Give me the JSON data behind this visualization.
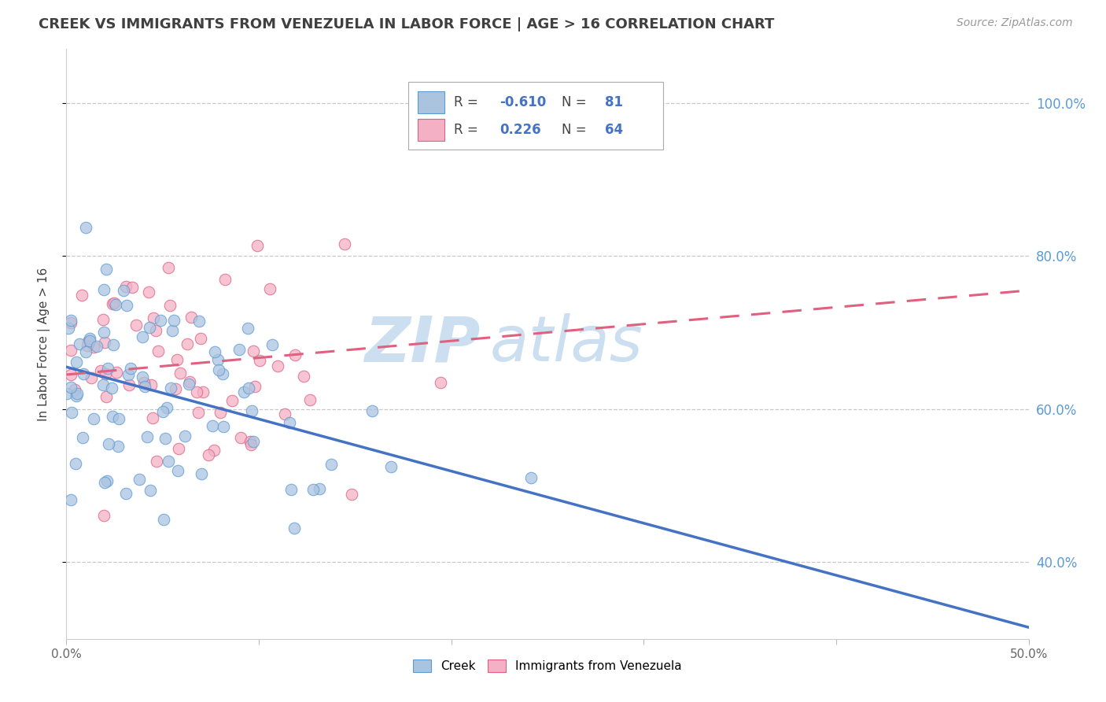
{
  "title": "CREEK VS IMMIGRANTS FROM VENEZUELA IN LABOR FORCE | AGE > 16 CORRELATION CHART",
  "source_text": "Source: ZipAtlas.com",
  "ylabel": "In Labor Force | Age > 16",
  "xmin": 0.0,
  "xmax": 0.5,
  "ymin": 0.3,
  "ymax": 1.07,
  "xtick_vals": [
    0.0,
    0.1,
    0.2,
    0.3,
    0.4,
    0.5
  ],
  "xtick_labels": [
    "0.0%",
    "",
    "",
    "",
    "",
    "50.0%"
  ],
  "ytick_vals": [
    0.4,
    0.6,
    0.8,
    1.0
  ],
  "ytick_labels": [
    "40.0%",
    "60.0%",
    "80.0%",
    "100.0%"
  ],
  "watermark_zip": "ZIP",
  "watermark_atlas": "atlas",
  "creek_color": "#aac4e0",
  "creek_edge_color": "#5b9bd5",
  "venezuela_color": "#f4b0c5",
  "venezuela_edge_color": "#e06080",
  "line_creek_color": "#4472c4",
  "line_venezuela_color": "#e06080",
  "bg_color": "#ffffff",
  "grid_color": "#c8c8c8",
  "title_color": "#404040",
  "axis_label_color": "#404040",
  "right_axis_color": "#5b9bd5",
  "watermark_color": "#ccdff0",
  "creek_line_x0": 0.0,
  "creek_line_y0": 0.655,
  "creek_line_x1": 0.5,
  "creek_line_y1": 0.315,
  "ven_line_x0": 0.0,
  "ven_line_y0": 0.645,
  "ven_line_x1": 0.5,
  "ven_line_y1": 0.755
}
